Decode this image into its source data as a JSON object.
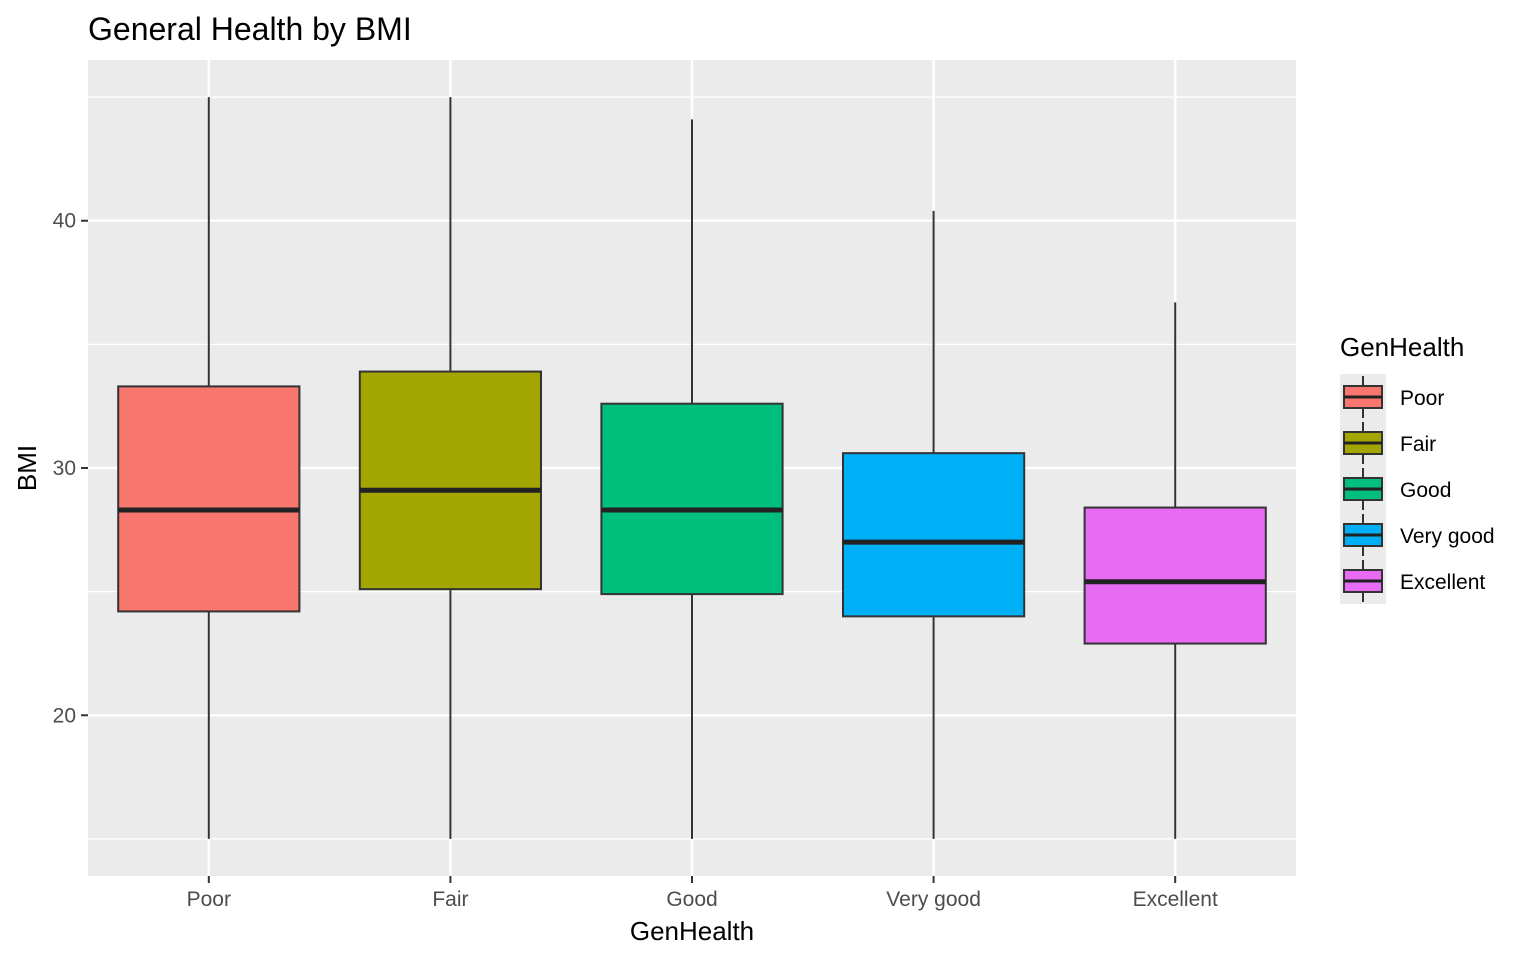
{
  "chart_data": {
    "type": "boxplot",
    "title": "General Health by BMI",
    "xlabel": "GenHealth",
    "ylabel": "BMI",
    "categories": [
      "Poor",
      "Fair",
      "Good",
      "Very good",
      "Excellent"
    ],
    "series": [
      {
        "name": "Poor",
        "color": "#F8766D",
        "whisker_low": 15.0,
        "q1": 24.2,
        "median": 28.3,
        "q3": 33.3,
        "whisker_high": 45.0
      },
      {
        "name": "Fair",
        "color": "#A3A500",
        "whisker_low": 15.0,
        "q1": 25.1,
        "median": 29.1,
        "q3": 33.9,
        "whisker_high": 45.0
      },
      {
        "name": "Good",
        "color": "#00BF7D",
        "whisker_low": 15.0,
        "q1": 24.9,
        "median": 28.3,
        "q3": 32.6,
        "whisker_high": 44.1
      },
      {
        "name": "Very good",
        "color": "#00B0F6",
        "whisker_low": 15.0,
        "q1": 24.0,
        "median": 27.0,
        "q3": 30.6,
        "whisker_high": 40.4
      },
      {
        "name": "Excellent",
        "color": "#E76BF3",
        "whisker_low": 15.0,
        "q1": 22.9,
        "median": 25.4,
        "q3": 28.4,
        "whisker_high": 36.7
      }
    ],
    "yticks": [
      20,
      30,
      40
    ],
    "ylim": [
      13.5,
      46.5
    ],
    "grid": true,
    "legend": {
      "title": "GenHealth",
      "position": "right"
    }
  }
}
